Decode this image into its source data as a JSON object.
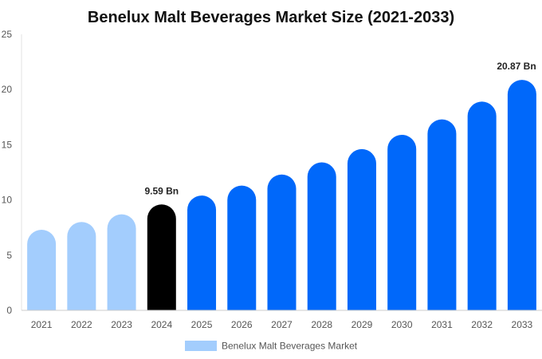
{
  "chart_data": {
    "type": "bar",
    "title": "Benelux Malt Beverages Market Size (2021-2033)",
    "xlabel": "",
    "ylabel": "",
    "categories": [
      "2021",
      "2022",
      "2023",
      "2024",
      "2025",
      "2026",
      "2027",
      "2028",
      "2029",
      "2030",
      "2031",
      "2032",
      "2033"
    ],
    "series": [
      {
        "name": "Benelux Malt Beverages Market",
        "values": [
          7.3,
          8.0,
          8.7,
          9.59,
          10.4,
          11.3,
          12.3,
          13.4,
          14.6,
          15.9,
          17.3,
          18.9,
          20.87
        ]
      }
    ],
    "data_labels": [
      {
        "category": "2024",
        "text": "9.59 Bn"
      },
      {
        "category": "2033",
        "text": "20.87 Bn"
      }
    ],
    "ylim": [
      0,
      25
    ],
    "yticks": [
      "0",
      "5",
      "10",
      "15",
      "20",
      "25"
    ],
    "grid": false,
    "legend_position": "bottom",
    "colors": {
      "historic": "#a3cdfd",
      "current": "#000000",
      "forecast": "#0068fa",
      "legend_swatch": "#a3cdfd"
    },
    "bar_color_groups": [
      "historic",
      "historic",
      "historic",
      "current",
      "forecast",
      "forecast",
      "forecast",
      "forecast",
      "forecast",
      "forecast",
      "forecast",
      "forecast",
      "forecast"
    ]
  }
}
